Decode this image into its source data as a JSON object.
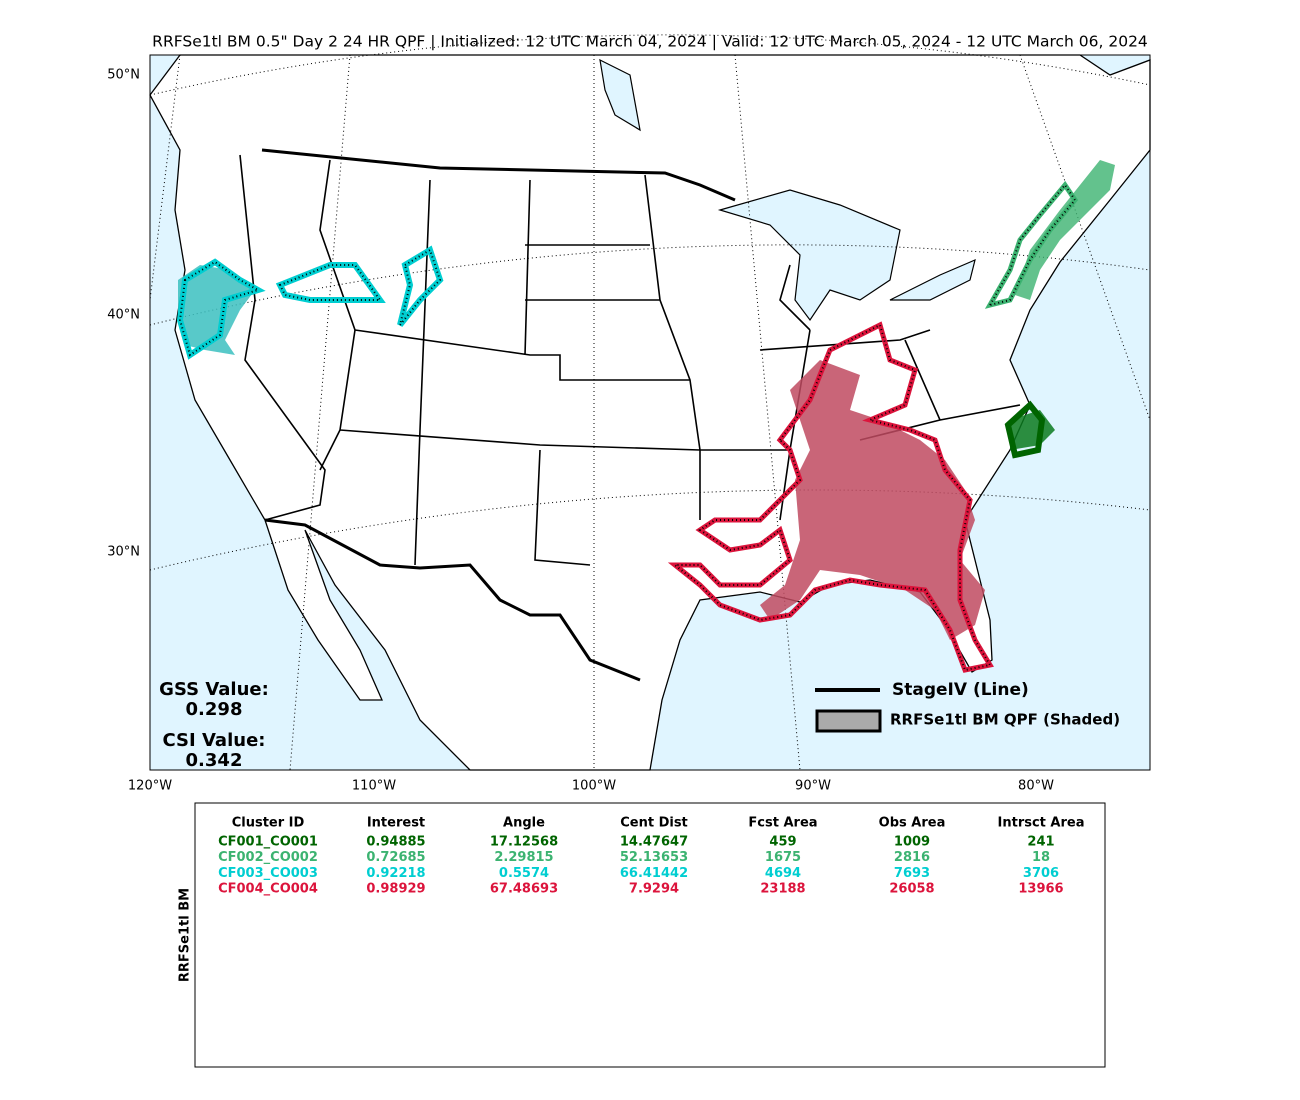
{
  "title": "RRFSe1tl BM 0.5\" Day 2 24 HR QPF | Initialized: 12 UTC March 04, 2024 | Valid: 12 UTC March 05, 2024 - 12 UTC March 06, 2024",
  "map": {
    "lat_labels": [
      "50°N",
      "40°N",
      "30°N"
    ],
    "lon_labels": [
      "120°W",
      "110°W",
      "100°W",
      "90°W",
      "80°W"
    ],
    "legend": [
      "StageIV (Line)",
      "RRFSe1tl BM QPF (Shaded)"
    ],
    "gss_label": "GSS Value:",
    "gss_value": "0.298",
    "csi_label": "CSI Value:",
    "csi_value": "0.342"
  },
  "table": {
    "side_label": "RRFSe1tl BM",
    "headers": [
      "Cluster ID",
      "Interest",
      "Angle",
      "Cent Dist",
      "Fcst Area",
      "Obs Area",
      "Intrsct Area"
    ],
    "rows": [
      {
        "color": "#006400",
        "cells": [
          "CF001_CO001",
          "0.94885",
          "17.12568",
          "14.47647",
          "459",
          "1009",
          "241"
        ]
      },
      {
        "color": "#3cb371",
        "cells": [
          "CF002_CO002",
          "0.72685",
          "2.29815",
          "52.13653",
          "1675",
          "2816",
          "18"
        ]
      },
      {
        "color": "#00ced1",
        "cells": [
          "CF003_CO003",
          "0.92218",
          "0.5574",
          "66.41442",
          "4694",
          "7693",
          "3706"
        ]
      },
      {
        "color": "#dc143c",
        "cells": [
          "CF004_CO004",
          "0.98929",
          "67.48693",
          "7.9294",
          "23188",
          "26058",
          "13966"
        ]
      }
    ]
  }
}
